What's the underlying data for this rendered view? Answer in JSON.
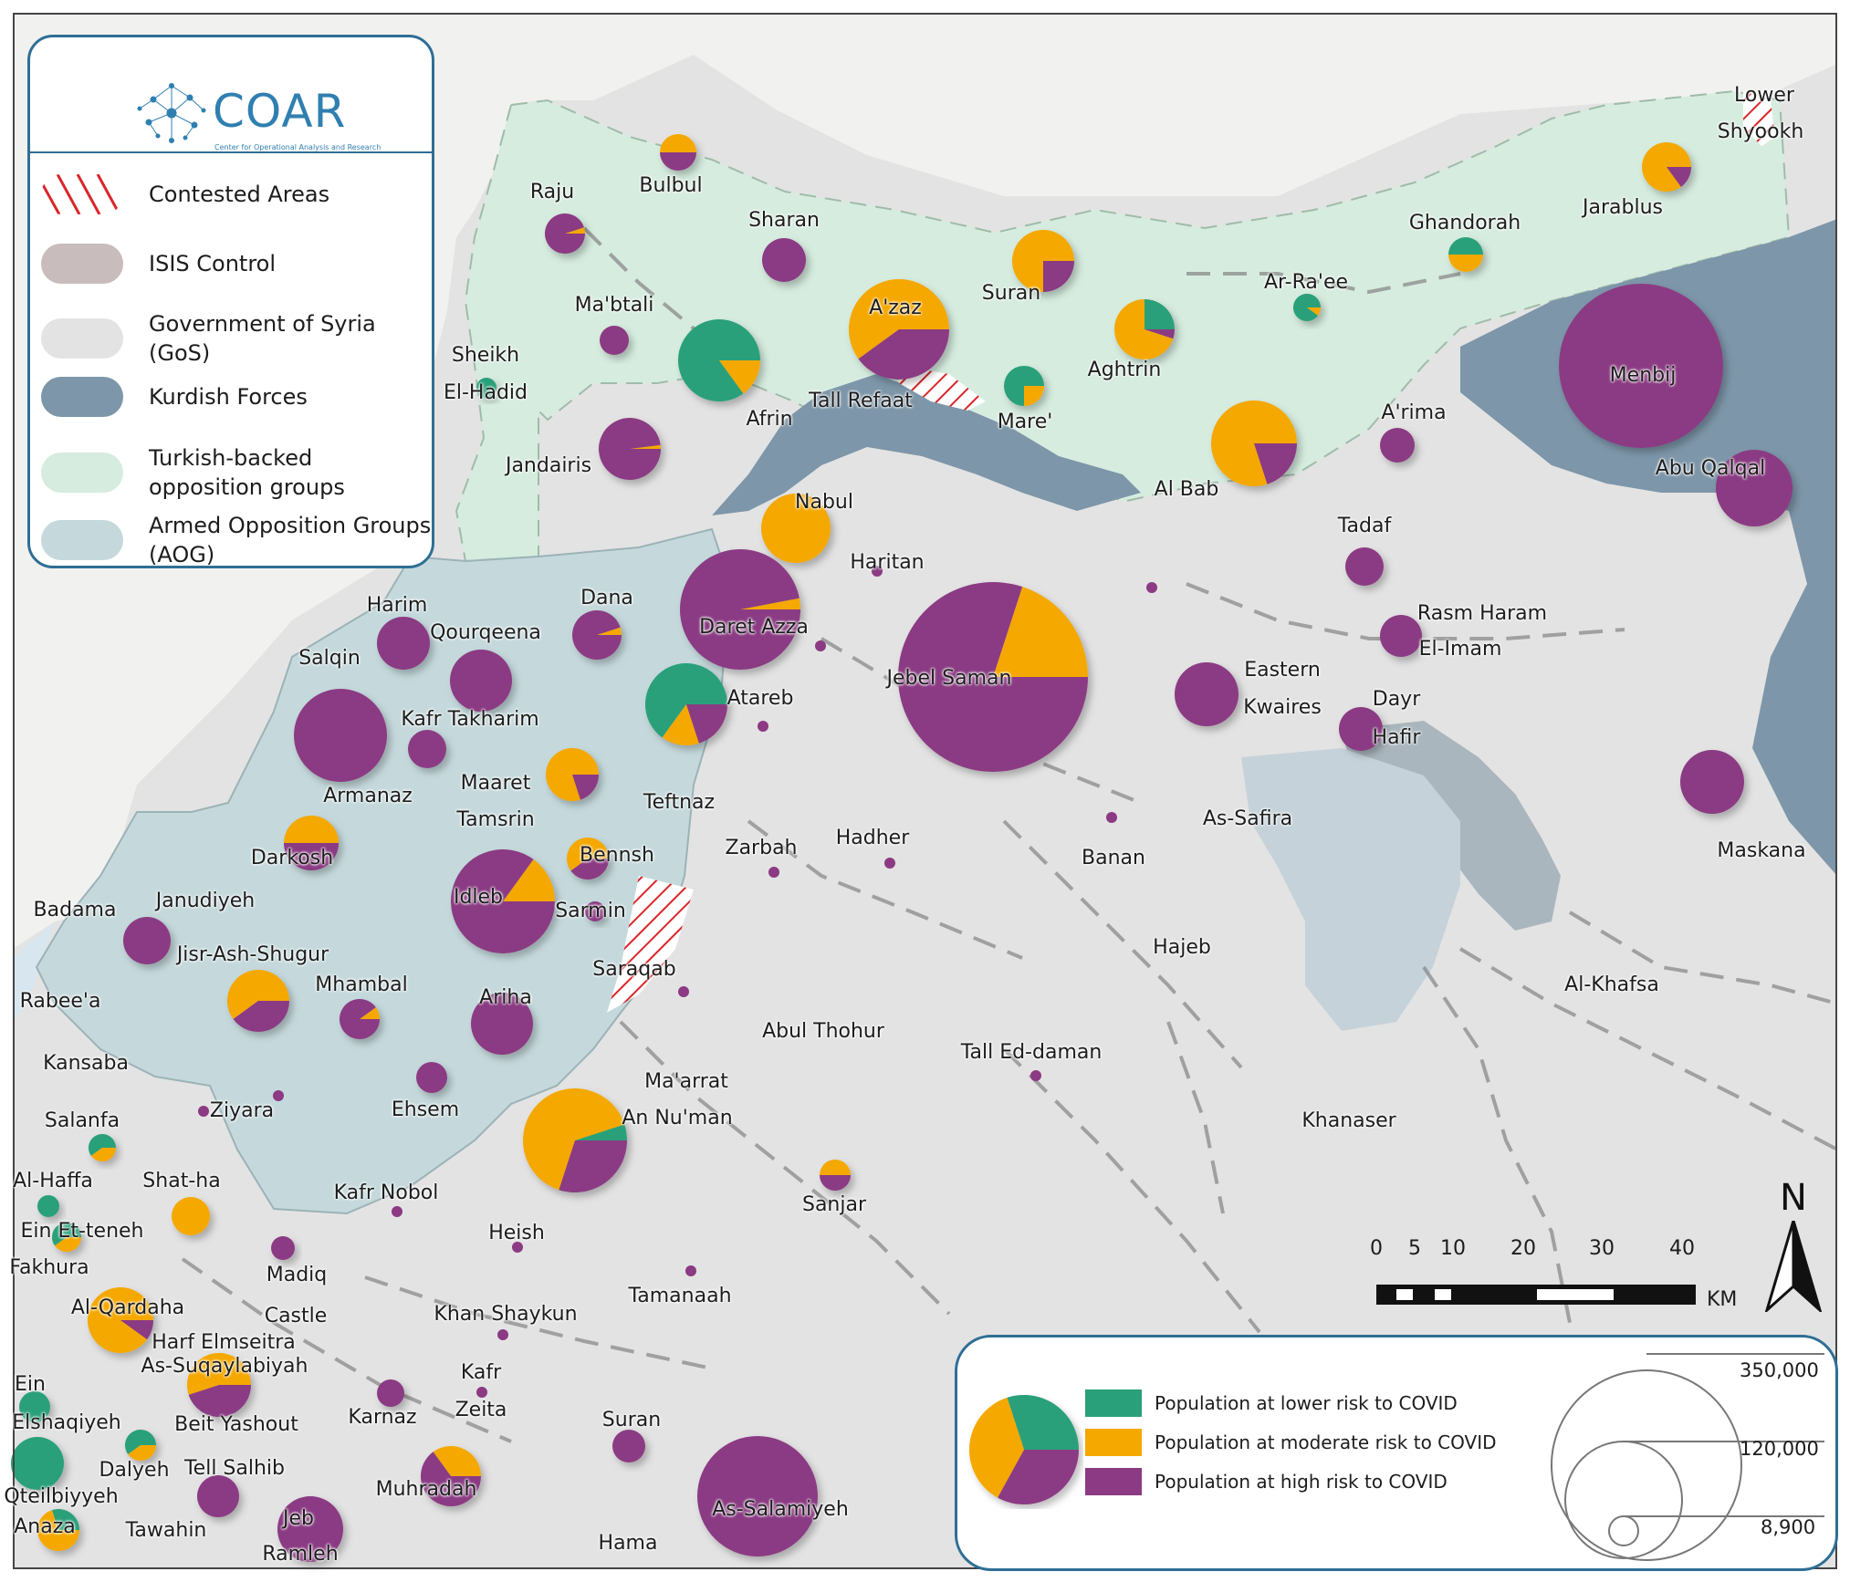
{
  "legend": {
    "logo_text": "COAR",
    "logo_sub": "Center for Operational Analysis and Research",
    "items": [
      {
        "label": "Contested Areas",
        "color": "#d9262a",
        "icon": "hatch"
      },
      {
        "label": "ISIS Control",
        "color": "#c8bcbd"
      },
      {
        "label": "Government of Syria (GoS)",
        "color": "#e3e3e3"
      },
      {
        "label": "Kurdish Forces",
        "color": "#7d96a9"
      },
      {
        "label": "Turkish-backed opposition groups",
        "color": "#d6ecdf"
      },
      {
        "label": "Armed Opposition Groups (AOG)",
        "color": "#c5d9dc"
      }
    ]
  },
  "risk_legend": {
    "items": [
      {
        "label": "Population at lower risk to COVID",
        "color": "#2aa07a"
      },
      {
        "label": "Population at moderate risk to COVID",
        "color": "#f5a800"
      },
      {
        "label": "Population at high risk to COVID",
        "color": "#8b3a83"
      }
    ],
    "sizes": [
      "350,000",
      "120,000",
      "8,900"
    ]
  },
  "scale": {
    "ticks": [
      "0",
      "5",
      "10",
      "20",
      "30",
      "40"
    ],
    "unit": "KM"
  },
  "north_label": "N",
  "places": [
    "Raju",
    "Bulbul",
    "Sharan",
    "Ma'btali",
    "Sheikh",
    "El-Hadid",
    "Jandairis",
    "Afrin",
    "A'zaz",
    "Tall Refaat",
    "Suran",
    "Mare'",
    "Aghtrin",
    "Ar-Ra'ee",
    "Ghandorah",
    "Jarablus",
    "Lower",
    "Shyookh",
    "Menbij",
    "A'rima",
    "Al Bab",
    "Tadaf",
    "Abu Qalqal",
    "Nabul",
    "Haritan",
    "Daret Azza",
    "Dana",
    "Harim",
    "Qourqeena",
    "Salqin",
    "Kafr Takharim",
    "Armanaz",
    "Maaret",
    "Tamsrin",
    "Darkosh",
    "Teftnaz",
    "Atareb",
    "Jebel Saman",
    "Eastern",
    "Kwaires",
    "Rasm Haram",
    "El-Imam",
    "Dayr",
    "Hafir",
    "As-Safira",
    "Maskana",
    "Zarbah",
    "Hadher",
    "Banan",
    "Bennsh",
    "Idleb",
    "Sarmin",
    "Badama",
    "Janudiyeh",
    "Jisr-Ash-Shugur",
    "Mhambal",
    "Ariha",
    "Rabee'a",
    "Saraqab",
    "Hajeb",
    "Al-Khafsa",
    "Abul Thohur",
    "Tall Ed-daman",
    "Kansaba",
    "Ehsem",
    "Ziyara",
    "Ma'arrat",
    "An Nu'man",
    "Khanaser",
    "Salanfa",
    "Al-Haffa",
    "Shat-ha",
    "Kafr Nobol",
    "Sanjar",
    "Ein Et-teneh",
    "Fakhura",
    "Heish",
    "Madiq",
    "Al-Qardaha",
    "Castle",
    "Khan Shaykun",
    "Tamanaah",
    "Harf Elmseitra",
    "As-Suqaylabiyah",
    "Ein",
    "Elshaqiyeh",
    "Beit Yashout",
    "Kafr",
    "Zeita",
    "Karnaz",
    "Dalyeh",
    "Tell Salhib",
    "Suran",
    "Muhradah",
    "Qteilbiyyeh",
    "Jeb",
    "Ramleh",
    "Tawahin",
    "Anaza",
    "Hama",
    "As-Salamiyeh"
  ],
  "pies": [
    {
      "name": "Bulbul",
      "lower": 0,
      "moderate": 0.5,
      "high": 0.5
    },
    {
      "name": "Raju",
      "lower": 0,
      "moderate": 0.05,
      "high": 0.95
    },
    {
      "name": "Sharan",
      "lower": 0,
      "moderate": 0,
      "high": 1
    },
    {
      "name": "Ma'btali",
      "lower": 0,
      "moderate": 0,
      "high": 1
    },
    {
      "name": "Sheikh El-Hadid",
      "lower": 1,
      "moderate": 0,
      "high": 0
    },
    {
      "name": "Jandairis",
      "lower": 0,
      "moderate": 0.02,
      "high": 0.98
    },
    {
      "name": "Afrin",
      "lower": 0.85,
      "moderate": 0.15,
      "high": 0
    },
    {
      "name": "A'zaz",
      "lower": 0,
      "moderate": 0.6,
      "high": 0.4
    },
    {
      "name": "Suran (north)",
      "lower": 0,
      "moderate": 0.75,
      "high": 0.25
    },
    {
      "name": "Mare'",
      "lower": 0.75,
      "moderate": 0.25,
      "high": 0
    },
    {
      "name": "Aghtrin",
      "lower": 0.25,
      "moderate": 0.7,
      "high": 0.05
    },
    {
      "name": "Ar-Ra'ee",
      "lower": 0.9,
      "moderate": 0.1,
      "high": 0
    },
    {
      "name": "Ghandorah",
      "lower": 0.5,
      "moderate": 0.5,
      "high": 0
    },
    {
      "name": "Jarablus",
      "lower": 0,
      "moderate": 0.85,
      "high": 0.15
    },
    {
      "name": "Menbij",
      "lower": 0,
      "moderate": 0,
      "high": 1
    },
    {
      "name": "A'rima",
      "lower": 0,
      "moderate": 0,
      "high": 1
    },
    {
      "name": "Al Bab",
      "lower": 0,
      "moderate": 0.8,
      "high": 0.2
    },
    {
      "name": "Tadaf",
      "lower": 0,
      "moderate": 0,
      "high": 1
    },
    {
      "name": "Abu Qalqal",
      "lower": 0,
      "moderate": 0,
      "high": 1
    },
    {
      "name": "Nabul",
      "lower": 0,
      "moderate": 1,
      "high": 0
    },
    {
      "name": "Daret Azza",
      "lower": 0,
      "moderate": 0.03,
      "high": 0.97
    },
    {
      "name": "Dana",
      "lower": 0,
      "moderate": 0.05,
      "high": 0.95
    },
    {
      "name": "Harim",
      "lower": 0,
      "moderate": 0,
      "high": 1
    },
    {
      "name": "Qourqeena",
      "lower": 0,
      "moderate": 0,
      "high": 1
    },
    {
      "name": "Salqin",
      "lower": 0,
      "moderate": 0,
      "high": 1
    },
    {
      "name": "Kafr Takharim",
      "lower": 0,
      "moderate": 0,
      "high": 1
    },
    {
      "name": "Maaret Tamsrin",
      "lower": 0,
      "moderate": 0.8,
      "high": 0.2
    },
    {
      "name": "Darkosh",
      "lower": 0,
      "moderate": 0.5,
      "high": 0.5
    },
    {
      "name": "Atareb",
      "lower": 0.65,
      "moderate": 0.15,
      "high": 0.2
    },
    {
      "name": "Jebel Saman",
      "lower": 0,
      "moderate": 0.2,
      "high": 0.8
    },
    {
      "name": "Eastern Kwaires",
      "lower": 0,
      "moderate": 0,
      "high": 1
    },
    {
      "name": "Rasm Haram El-Imam",
      "lower": 0,
      "moderate": 0,
      "high": 1
    },
    {
      "name": "Dayr Hafir",
      "lower": 0,
      "moderate": 0,
      "high": 1
    },
    {
      "name": "Maskana",
      "lower": 0,
      "moderate": 0,
      "high": 1
    },
    {
      "name": "Bennsh",
      "lower": 0,
      "moderate": 0.6,
      "high": 0.4
    },
    {
      "name": "Idleb",
      "lower": 0,
      "moderate": 0.15,
      "high": 0.85
    },
    {
      "name": "Sarmin",
      "lower": 0,
      "moderate": 0,
      "high": 1
    },
    {
      "name": "Janudiyeh",
      "lower": 0,
      "moderate": 0,
      "high": 1
    },
    {
      "name": "Jisr-Ash-Shugur",
      "lower": 0,
      "moderate": 0.6,
      "high": 0.4
    },
    {
      "name": "Mhambal",
      "lower": 0,
      "moderate": 0.1,
      "high": 0.9
    },
    {
      "name": "Ariha",
      "lower": 0,
      "moderate": 0,
      "high": 1
    },
    {
      "name": "Ehsem",
      "lower": 0,
      "moderate": 0,
      "high": 1
    },
    {
      "name": "Ma'arrat An Nu'man",
      "lower": 0.05,
      "moderate": 0.65,
      "high": 0.3
    },
    {
      "name": "Salanfa",
      "lower": 0.6,
      "moderate": 0.4,
      "high": 0
    },
    {
      "name": "Al-Haffa",
      "lower": 1,
      "moderate": 0,
      "high": 0
    },
    {
      "name": "Shat-ha",
      "lower": 0,
      "moderate": 1,
      "high": 0
    },
    {
      "name": "Sanjar",
      "lower": 0,
      "moderate": 0.5,
      "high": 0.5
    },
    {
      "name": "Ein Et-teneh",
      "lower": 0.6,
      "moderate": 0.4,
      "high": 0
    },
    {
      "name": "Madiq",
      "lower": 0,
      "moderate": 0,
      "high": 1
    },
    {
      "name": "Al-Qardaha",
      "lower": 0,
      "moderate": 0.9,
      "high": 0.1
    },
    {
      "name": "As-Suqaylabiyah",
      "lower": 0,
      "moderate": 0.55,
      "high": 0.45
    },
    {
      "name": "Ein Elshaqiyeh",
      "lower": 1,
      "moderate": 0,
      "high": 0
    },
    {
      "name": "Karnaz",
      "lower": 0,
      "moderate": 0,
      "high": 1
    },
    {
      "name": "Dalyeh",
      "lower": 0.6,
      "moderate": 0.4,
      "high": 0
    },
    {
      "name": "Tell Salhib",
      "lower": 0,
      "moderate": 0,
      "high": 1
    },
    {
      "name": "Suran (south)",
      "lower": 0,
      "moderate": 0,
      "high": 1
    },
    {
      "name": "Muhradah",
      "lower": 0,
      "moderate": 0.35,
      "high": 0.65
    },
    {
      "name": "Qteilbiyyeh",
      "lower": 1,
      "moderate": 0,
      "high": 0
    },
    {
      "name": "Jeb Ramleh",
      "lower": 0,
      "moderate": 0,
      "high": 1
    },
    {
      "name": "Anaza",
      "lower": 0.3,
      "moderate": 0.7,
      "high": 0
    },
    {
      "name": "As-Salamiyeh",
      "lower": 0,
      "moderate": 0,
      "high": 1
    }
  ]
}
